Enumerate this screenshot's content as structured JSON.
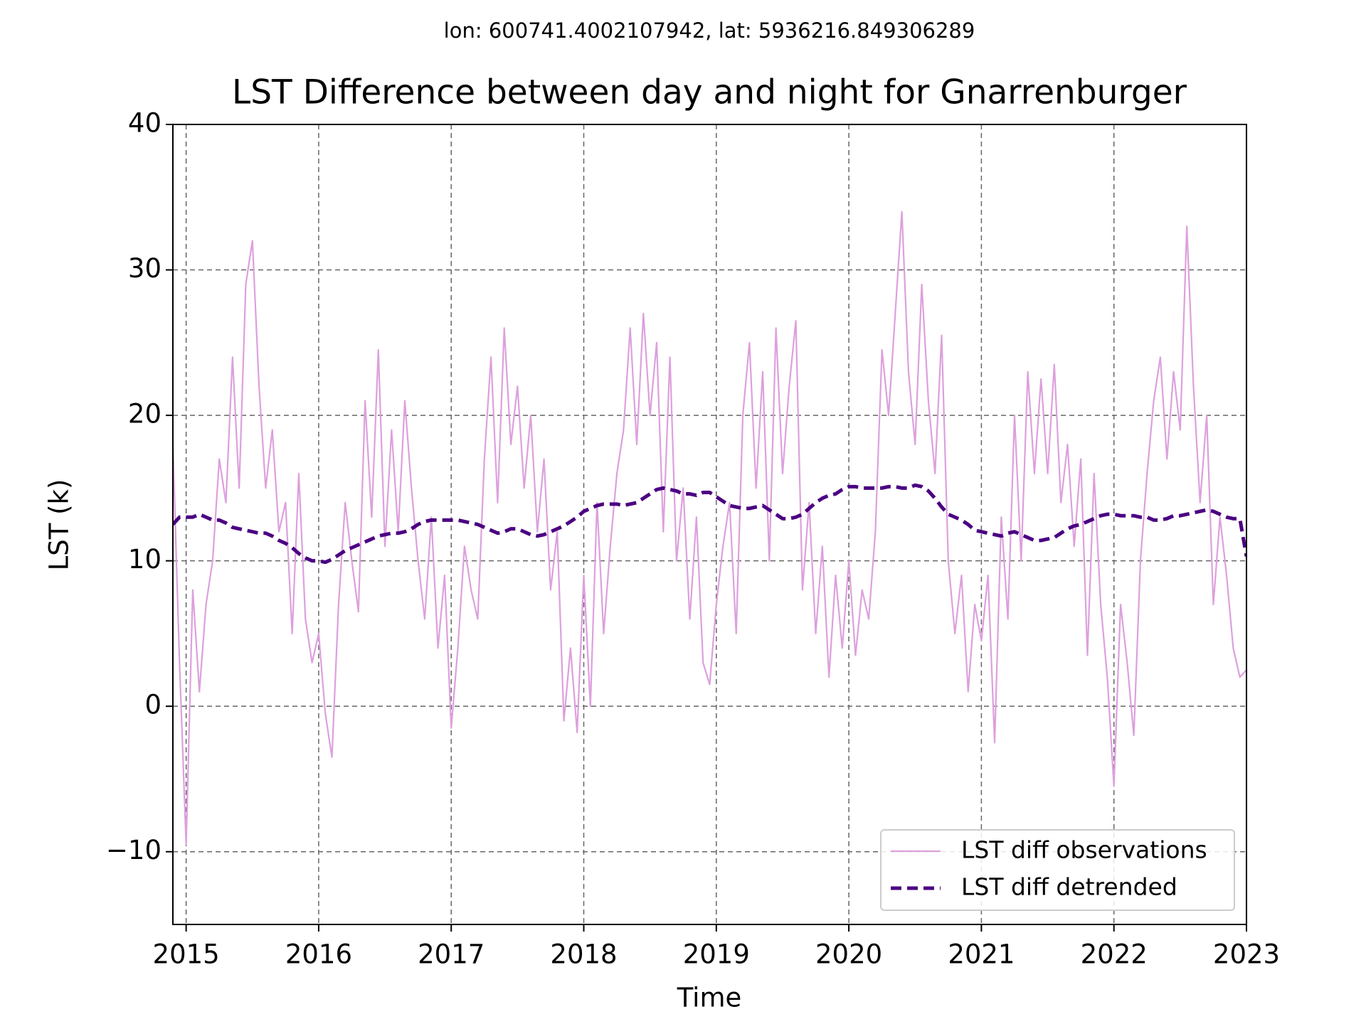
{
  "chart_data": {
    "type": "line",
    "subtitle": "lon: 600741.4002107942, lat: 5936216.849306289",
    "title": "LST Difference between day and night for Gnarrenburger",
    "xlabel": "Time",
    "ylabel": "LST (k)",
    "xlim": [
      2014.9,
      2023.0
    ],
    "xticks": [
      2015,
      2016,
      2017,
      2018,
      2019,
      2020,
      2021,
      2022,
      2023
    ],
    "ylim": [
      -15,
      40
    ],
    "yticks": [
      {
        "value": -10,
        "label": "−10"
      },
      0,
      10,
      20,
      30,
      40
    ],
    "grid": true,
    "legend": "lower right",
    "x": [
      2014.9,
      2014.95,
      2015,
      2015.05,
      2015.1,
      2015.15,
      2015.2,
      2015.25,
      2015.3,
      2015.35,
      2015.4,
      2015.45,
      2015.5,
      2015.55,
      2015.6,
      2015.65,
      2015.7,
      2015.75,
      2015.8,
      2015.85,
      2015.9,
      2015.95,
      2016,
      2016.05,
      2016.1,
      2016.15,
      2016.2,
      2016.25,
      2016.3,
      2016.35,
      2016.4,
      2016.45,
      2016.5,
      2016.55,
      2016.6,
      2016.65,
      2016.7,
      2016.75,
      2016.8,
      2016.85,
      2016.9,
      2016.95,
      2017,
      2017.05,
      2017.1,
      2017.15,
      2017.2,
      2017.25,
      2017.3,
      2017.35,
      2017.4,
      2017.45,
      2017.5,
      2017.55,
      2017.6,
      2017.65,
      2017.7,
      2017.75,
      2017.8,
      2017.85,
      2017.9,
      2017.95,
      2018,
      2018.05,
      2018.1,
      2018.15,
      2018.2,
      2018.25,
      2018.3,
      2018.35,
      2018.4,
      2018.45,
      2018.5,
      2018.55,
      2018.6,
      2018.65,
      2018.7,
      2018.75,
      2018.8,
      2018.85,
      2018.9,
      2018.95,
      2019,
      2019.05,
      2019.1,
      2019.15,
      2019.2,
      2019.25,
      2019.3,
      2019.35,
      2019.4,
      2019.45,
      2019.5,
      2019.55,
      2019.6,
      2019.65,
      2019.7,
      2019.75,
      2019.8,
      2019.85,
      2019.9,
      2019.95,
      2020,
      2020.05,
      2020.1,
      2020.15,
      2020.2,
      2020.25,
      2020.3,
      2020.35,
      2020.4,
      2020.45,
      2020.5,
      2020.55,
      2020.6,
      2020.65,
      2020.7,
      2020.75,
      2020.8,
      2020.85,
      2020.9,
      2020.95,
      2021,
      2021.05,
      2021.1,
      2021.15,
      2021.2,
      2021.25,
      2021.3,
      2021.35,
      2021.4,
      2021.45,
      2021.5,
      2021.55,
      2021.6,
      2021.65,
      2021.7,
      2021.75,
      2021.8,
      2021.85,
      2021.9,
      2021.95,
      2022,
      2022.05,
      2022.1,
      2022.15,
      2022.2,
      2022.25,
      2022.3,
      2022.35,
      2022.4,
      2022.45,
      2022.5,
      2022.55,
      2022.6,
      2022.65,
      2022.7,
      2022.75,
      2022.8,
      2022.85,
      2022.9,
      2022.95,
      2023
    ],
    "series": [
      {
        "name": "LST diff observations",
        "color": "#dda0dd",
        "linestyle": "solid",
        "linewidth": 2.2,
        "values": [
          18,
          3,
          -9.5,
          8,
          1,
          7,
          10,
          17,
          14,
          24,
          15,
          29,
          32,
          22,
          15,
          19,
          12,
          14,
          5,
          16,
          6,
          3,
          5,
          -0.5,
          -3.5,
          7,
          14,
          10,
          6.5,
          21,
          13,
          24.5,
          11,
          19,
          12,
          21,
          15,
          10,
          6,
          13,
          4,
          9,
          -1.5,
          4,
          11,
          8,
          6,
          17,
          24,
          14,
          26,
          18,
          22,
          15,
          20,
          12,
          17,
          8,
          12,
          -1,
          4,
          -1.8,
          9,
          0,
          14,
          5,
          11,
          16,
          19,
          26,
          18,
          27,
          20,
          25,
          12,
          24,
          10,
          15,
          6,
          13,
          3,
          1.5,
          7,
          11,
          14,
          5,
          20,
          25,
          15,
          23,
          10,
          26,
          16,
          22,
          26.5,
          8,
          14,
          5,
          11,
          2,
          9,
          4,
          10,
          3.5,
          8,
          6,
          12,
          24.5,
          20,
          27,
          34,
          23,
          18,
          29,
          21,
          16,
          25.5,
          10,
          5,
          9,
          1,
          7,
          4.5,
          9,
          -2.5,
          13,
          6,
          20,
          10,
          23,
          16,
          22.5,
          16,
          23.5,
          14,
          18,
          11,
          17,
          3.5,
          16,
          7,
          2,
          -5.5,
          7,
          3,
          -2,
          10,
          16,
          21,
          24,
          17,
          23,
          19,
          33,
          22,
          14,
          20,
          7,
          13,
          9,
          4,
          2,
          2.5
        ]
      },
      {
        "name": "LST diff detrended",
        "color": "#4b0082",
        "linestyle": "dashed",
        "linewidth": 5,
        "values": [
          12.5,
          13.0,
          13.0,
          13.0,
          13.2,
          13.0,
          12.8,
          12.8,
          12.6,
          12.3,
          12.2,
          12.1,
          12.0,
          11.9,
          11.9,
          11.7,
          11.4,
          11.2,
          10.9,
          10.5,
          10.2,
          10.0,
          10.0,
          9.9,
          10.1,
          10.4,
          10.7,
          10.9,
          11.1,
          11.3,
          11.5,
          11.7,
          11.8,
          11.9,
          11.9,
          12.0,
          12.2,
          12.5,
          12.7,
          12.8,
          12.8,
          12.8,
          12.8,
          12.8,
          12.7,
          12.6,
          12.5,
          12.3,
          12.1,
          11.9,
          12.0,
          12.2,
          12.2,
          12.0,
          11.8,
          11.7,
          11.8,
          12.0,
          12.2,
          12.4,
          12.7,
          13.0,
          13.4,
          13.6,
          13.8,
          13.9,
          13.9,
          13.9,
          13.8,
          13.9,
          14.0,
          14.3,
          14.6,
          14.9,
          15.0,
          14.9,
          14.8,
          14.6,
          14.6,
          14.5,
          14.7,
          14.7,
          14.4,
          14.1,
          13.8,
          13.7,
          13.6,
          13.6,
          13.7,
          13.8,
          13.5,
          13.2,
          12.9,
          12.9,
          13.0,
          13.2,
          13.6,
          14.0,
          14.3,
          14.5,
          14.6,
          14.9,
          15.1,
          15.1,
          15.0,
          15.0,
          15.0,
          15.0,
          15.1,
          15.1,
          15.0,
          15.0,
          15.2,
          15.1,
          14.8,
          14.3,
          13.7,
          13.2,
          13.0,
          12.8,
          12.5,
          12.1,
          12.0,
          11.9,
          11.8,
          11.7,
          11.9,
          12.0,
          11.8,
          11.6,
          11.4,
          11.4,
          11.5,
          11.6,
          11.9,
          12.2,
          12.4,
          12.5,
          12.7,
          12.9,
          13.1,
          13.2,
          13.2,
          13.1,
          13.1,
          13.1,
          13.0,
          13.0,
          12.8,
          12.8,
          12.9,
          13.1,
          13.1,
          13.2,
          13.3,
          13.4,
          13.5,
          13.4,
          13.2,
          13.0,
          12.9,
          12.9,
          10.3
        ]
      }
    ]
  }
}
